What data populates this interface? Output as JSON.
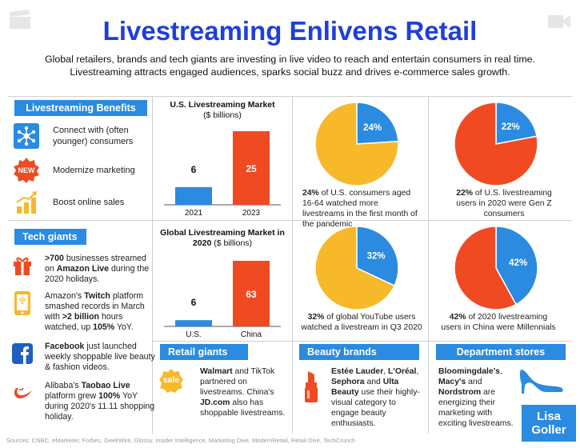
{
  "header": {
    "title": "Livestreaming Enlivens Retail",
    "subtitle_line1": "Global retailers, brands and tech giants are investing in live video to reach and entertain consumers in real time.",
    "subtitle_line2": "Livestreaming attracts engaged audiences, sparks social buzz and drives e-commerce sales growth."
  },
  "benefits": {
    "label": "Livestreaming Benefits",
    "items": [
      {
        "icon": "network-icon",
        "text_line1": "Connect with (often",
        "text_line2": "younger) consumers"
      },
      {
        "icon": "new-badge-icon",
        "badge_text": "NEW",
        "text_line1": "Modernize marketing",
        "text_line2": ""
      },
      {
        "icon": "growth-chart-icon",
        "text_line1": "Boost online sales",
        "text_line2": ""
      }
    ]
  },
  "tech_giants": {
    "label": "Tech giants",
    "items": [
      {
        "icon": "gift-icon",
        "parts": [
          ">700",
          " businesses streamed on ",
          "Amazon Live",
          " during the 2020 holidays."
        ]
      },
      {
        "icon": "twitch-phone-icon",
        "parts": [
          "Amazon's ",
          "Twitch",
          " platform smashed records in March with ",
          ">2 billion",
          " hours watched, up ",
          "105%",
          " YoY."
        ]
      },
      {
        "icon": "facebook-icon",
        "parts": [
          "Facebook",
          " just launched weekly shoppable live beauty & fashion videos."
        ]
      },
      {
        "icon": "alibaba-icon",
        "parts": [
          "Alibaba's ",
          "Taobao Live",
          " platform grew ",
          "100%",
          " YoY during 2020's 11.11 shopping holiday."
        ]
      }
    ]
  },
  "retail_giants": {
    "label": "Retail giants",
    "sale_text": "sale",
    "parts": [
      "Walmart",
      " and TikTok partnered on livestreams. China's ",
      "JD.com",
      " also has shoppable livestreams."
    ]
  },
  "beauty_brands": {
    "label": "Beauty brands",
    "parts": [
      "Estée Lauder",
      ", ",
      "L'Oréal",
      ", ",
      "Sephora",
      " and ",
      "Ulta Beauty",
      " use their highly-visual category to engage beauty enthusiasts."
    ]
  },
  "department_stores": {
    "label": "Department stores",
    "parts": [
      "Bloomingdale's",
      ", ",
      "Macy's",
      " and ",
      "Nordstrom",
      " are energizing their marketing with exciting livestreams."
    ]
  },
  "pie_captions": [
    {
      "parts": [
        "24%",
        " of U.S. consumers aged 16-64 watched more livestreams in the first month of the pandemic"
      ]
    },
    {
      "parts": [
        "22%",
        " of U.S. livestreaming users in 2020 were Gen Z consumers"
      ]
    },
    {
      "parts": [
        "32%",
        " of global YouTube users watched a livestream in Q3 2020"
      ]
    },
    {
      "parts": [
        "42%",
        " of 2020 livestreaming users in China were Millennials"
      ]
    }
  ],
  "chart_data": [
    {
      "type": "bar",
      "title": "U.S. Livestreaming Market",
      "subtitle": "($ billions)",
      "categories": [
        "2021",
        "2023"
      ],
      "values": [
        6,
        25
      ],
      "colors": [
        "#2a8be0",
        "#f04a23"
      ],
      "ylim": [
        0,
        25
      ]
    },
    {
      "type": "bar",
      "title": "Global Livestreaming Market in 2020",
      "subtitle": "($ billions)",
      "categories": [
        "U.S.",
        "China"
      ],
      "values": [
        6,
        63
      ],
      "colors": [
        "#2a8be0",
        "#f04a23"
      ],
      "ylim": [
        0,
        63
      ]
    },
    {
      "type": "pie",
      "slices": [
        {
          "label": "24%",
          "value": 24,
          "color": "#2a8be0"
        },
        {
          "label": "",
          "value": 76,
          "color": "#f7b82a"
        }
      ]
    },
    {
      "type": "pie",
      "slices": [
        {
          "label": "22%",
          "value": 22,
          "color": "#2a8be0"
        },
        {
          "label": "",
          "value": 78,
          "color": "#f04a23"
        }
      ]
    },
    {
      "type": "pie",
      "slices": [
        {
          "label": "32%",
          "value": 32,
          "color": "#2a8be0"
        },
        {
          "label": "",
          "value": 68,
          "color": "#f7b82a"
        }
      ]
    },
    {
      "type": "pie",
      "slices": [
        {
          "label": "42%",
          "value": 42,
          "color": "#2a8be0"
        },
        {
          "label": "",
          "value": 58,
          "color": "#f04a23"
        }
      ]
    }
  ],
  "sources": "Sources: CNBC, eMarketer, Forbes, GeekWire, Glossy, Insider Intelligence, Marketing Dive, ModernRetail, Retail Dive, TechCrunch",
  "logo": {
    "line1": "Lisa",
    "line2": "Goller"
  },
  "colors": {
    "accent_blue": "#2a8be0",
    "title_blue": "#1f3fd8",
    "orange_red": "#f04a23",
    "yellow": "#f7b82a"
  }
}
